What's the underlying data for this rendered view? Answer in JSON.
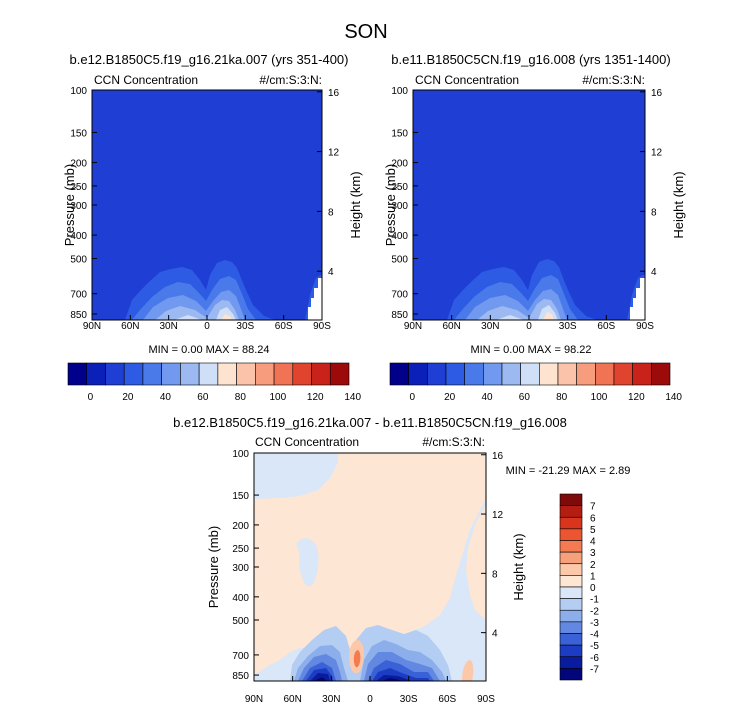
{
  "figure": {
    "title": "SON"
  },
  "chart_data": [
    {
      "type": "heatmap",
      "title": "b.e12.B1850C5.f19_g16.21ka.007 (yrs 351-400)",
      "left_label": "CCN Concentration",
      "right_label": "#/cm:S:3:N:",
      "ylabel": "Pressure (mb)",
      "y2label": "Height (km)",
      "x_ticks": [
        "90N",
        "60N",
        "30N",
        "0",
        "30S",
        "60S",
        "90S"
      ],
      "y_ticks": [
        "100",
        "150",
        "200",
        "250",
        "300",
        "400",
        "500",
        "700",
        "850"
      ],
      "y2_ticks": [
        "16",
        "12",
        "8",
        "4"
      ],
      "stats": "MIN =  0.00  MAX = 88.24",
      "levels": [
        "0",
        "20",
        "40",
        "60",
        "80",
        "100",
        "120",
        "140"
      ],
      "min": 0.0,
      "max": 88.24
    },
    {
      "type": "heatmap",
      "title": "b.e11.B1850C5CN.f19_g16.008 (yrs 1351-1400)",
      "left_label": "CCN Concentration",
      "right_label": "#/cm:S:3:N:",
      "ylabel": "Pressure (mb)",
      "y2label": "Height (km)",
      "x_ticks": [
        "90N",
        "60N",
        "30N",
        "0",
        "30S",
        "60S",
        "90S"
      ],
      "y_ticks": [
        "100",
        "150",
        "200",
        "250",
        "300",
        "400",
        "500",
        "700",
        "850"
      ],
      "y2_ticks": [
        "16",
        "12",
        "8",
        "4"
      ],
      "stats": "MIN =  0.00  MAX = 98.22",
      "levels": [
        "0",
        "20",
        "40",
        "60",
        "80",
        "100",
        "120",
        "140"
      ],
      "min": 0.0,
      "max": 98.22
    },
    {
      "type": "heatmap",
      "title": "b.e12.B1850C5.f19_g16.21ka.007 - b.e11.B1850C5CN.f19_g16.008",
      "left_label": "CCN Concentration",
      "right_label": "#/cm:S:3:N:",
      "ylabel": "Pressure (mb)",
      "y2label": "Height (km)",
      "x_ticks": [
        "90N",
        "60N",
        "30N",
        "0",
        "30S",
        "60S",
        "90S"
      ],
      "y_ticks": [
        "100",
        "150",
        "200",
        "250",
        "300",
        "400",
        "500",
        "700",
        "850"
      ],
      "y2_ticks": [
        "16",
        "12",
        "8",
        "4"
      ],
      "stats": "MIN = -21.29  MAX =  2.89",
      "levels": [
        "7",
        "6",
        "5",
        "4",
        "3",
        "2",
        "1",
        "0",
        "-1",
        "-2",
        "-3",
        "-4",
        "-5",
        "-6",
        "-7"
      ],
      "min": -21.29,
      "max": 2.89
    }
  ],
  "colors": {
    "seq_scale": [
      "#00008a",
      "#0a20b8",
      "#1f3ed4",
      "#2e5be3",
      "#4a7aea",
      "#7099ef",
      "#9cb9f2",
      "#cfdff7",
      "#fde3d0",
      "#fbc4aa",
      "#f89c7e",
      "#f17356",
      "#e0442f",
      "#c8221a",
      "#9c0a0a"
    ],
    "diff_scale": [
      "#7f0a0a",
      "#b51c12",
      "#d9351d",
      "#ec5532",
      "#f47a52",
      "#f7a07c",
      "#fbc8aa",
      "#fde6d4",
      "#d9e7f8",
      "#b4cdf3",
      "#8caeeb",
      "#6288e2",
      "#3a62d6",
      "#1d3cc4",
      "#0a1c9e",
      "#02067a"
    ],
    "diff_background": "#fde6d4",
    "diff_negative_light": "#d9e7f8"
  }
}
